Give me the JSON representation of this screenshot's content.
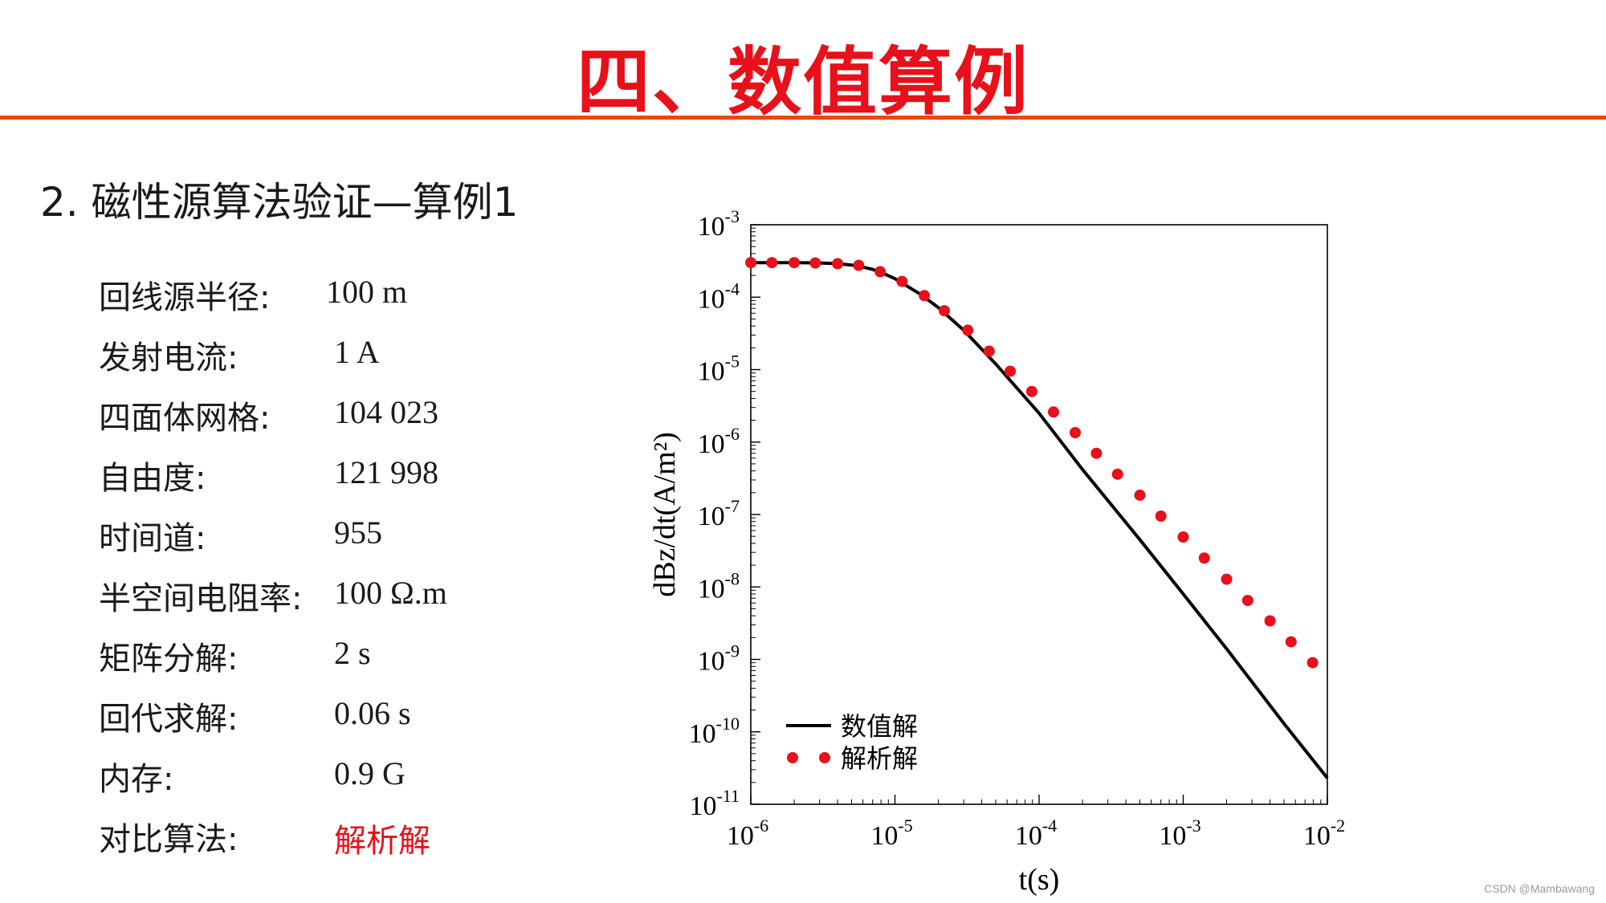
{
  "slide": {
    "title": "四、数值算例",
    "subtitle": "2.  磁性源算法验证—算例1"
  },
  "params": [
    {
      "label": "回线源半径:",
      "value": "100 m"
    },
    {
      "label": "发射电流:",
      "value": "1 A"
    },
    {
      "label": "四面体网格:",
      "value": "104 023"
    },
    {
      "label": "自由度:",
      "value": "121 998"
    },
    {
      "label": "时间道:",
      "value": "955"
    },
    {
      "label": "半空间电阻率:",
      "value": "100 Ω.m"
    },
    {
      "label": "矩阵分解:",
      "value": "2 s"
    },
    {
      "label": "回代求解:",
      "value": "0.06 s"
    },
    {
      "label": "内存:",
      "value": "0.9 G"
    },
    {
      "label": "对比算法:",
      "value": "解析解",
      "highlight": "#e8101a"
    }
  ],
  "chart_data": {
    "type": "line",
    "xscale": "log",
    "yscale": "log",
    "xlabel": "t(s)",
    "ylabel": "dBz/dt(A/m²)",
    "xlim": [
      1e-06,
      0.01
    ],
    "ylim": [
      1e-11,
      0.001
    ],
    "x_ticks": [
      {
        "base": "10",
        "exp": "-6"
      },
      {
        "base": "10",
        "exp": "-5"
      },
      {
        "base": "10",
        "exp": "-4"
      },
      {
        "base": "10",
        "exp": "-3"
      },
      {
        "base": "10",
        "exp": "-2"
      }
    ],
    "y_ticks": [
      {
        "base": "10",
        "exp": "-3"
      },
      {
        "base": "10",
        "exp": "-4"
      },
      {
        "base": "10",
        "exp": "-5"
      },
      {
        "base": "10",
        "exp": "-6"
      },
      {
        "base": "10",
        "exp": "-7"
      },
      {
        "base": "10",
        "exp": "-8"
      },
      {
        "base": "10",
        "exp": "-9"
      },
      {
        "base": "10",
        "exp": "-10"
      },
      {
        "base": "10",
        "exp": "-11"
      }
    ],
    "legend_position": "bottom-left",
    "series": [
      {
        "name": "数值解",
        "style": "line",
        "color": "#000000",
        "x": [
          1e-06,
          1.5e-06,
          2e-06,
          3e-06,
          4e-06,
          5e-06,
          6e-06,
          7e-06,
          8e-06,
          1e-05,
          1.5e-05,
          2e-05,
          3e-05,
          5e-05,
          7e-05,
          0.0001,
          0.0002,
          0.0005,
          0.001,
          0.002,
          0.005,
          0.01
        ],
        "y": [
          0.0003,
          0.0003,
          0.0003,
          0.000297,
          0.00029,
          0.000278,
          0.00026,
          0.000242,
          0.00022,
          0.00018,
          0.00011,
          7.2e-05,
          3.5e-05,
          1.2e-05,
          5.6e-06,
          2.5e-06,
          4.2e-07,
          4.5e-08,
          8e-09,
          1.4e-09,
          1.3e-10,
          2.3e-11
        ]
      },
      {
        "name": "解析解",
        "style": "markers",
        "color": "#e8101a",
        "x": [
          1e-06,
          1.4e-06,
          2e-06,
          2.8e-06,
          4e-06,
          5.6e-06,
          7.9e-06,
          1.12e-05,
          1.6e-05,
          2.2e-05,
          3.2e-05,
          4.5e-05,
          6.3e-05,
          8.9e-05,
          0.000126,
          0.000178,
          0.00025,
          0.00035,
          0.0005,
          0.0007,
          0.001,
          0.0014,
          0.002,
          0.0028,
          0.004,
          0.0056,
          0.0079
        ],
        "y": [
          0.0003,
          0.0003,
          0.0003,
          0.000297,
          0.00029,
          0.000275,
          0.000225,
          0.000165,
          0.000105,
          6.5e-05,
          3.5e-05,
          1.8e-05,
          9.5e-06,
          5e-06,
          2.6e-06,
          1.35e-06,
          7e-07,
          3.6e-07,
          1.85e-07,
          9.5e-08,
          4.9e-08,
          2.5e-08,
          1.28e-08,
          6.5e-09,
          3.4e-09,
          1.75e-09,
          9e-10
        ]
      }
    ]
  },
  "watermark": "CSDN @Mambawang"
}
